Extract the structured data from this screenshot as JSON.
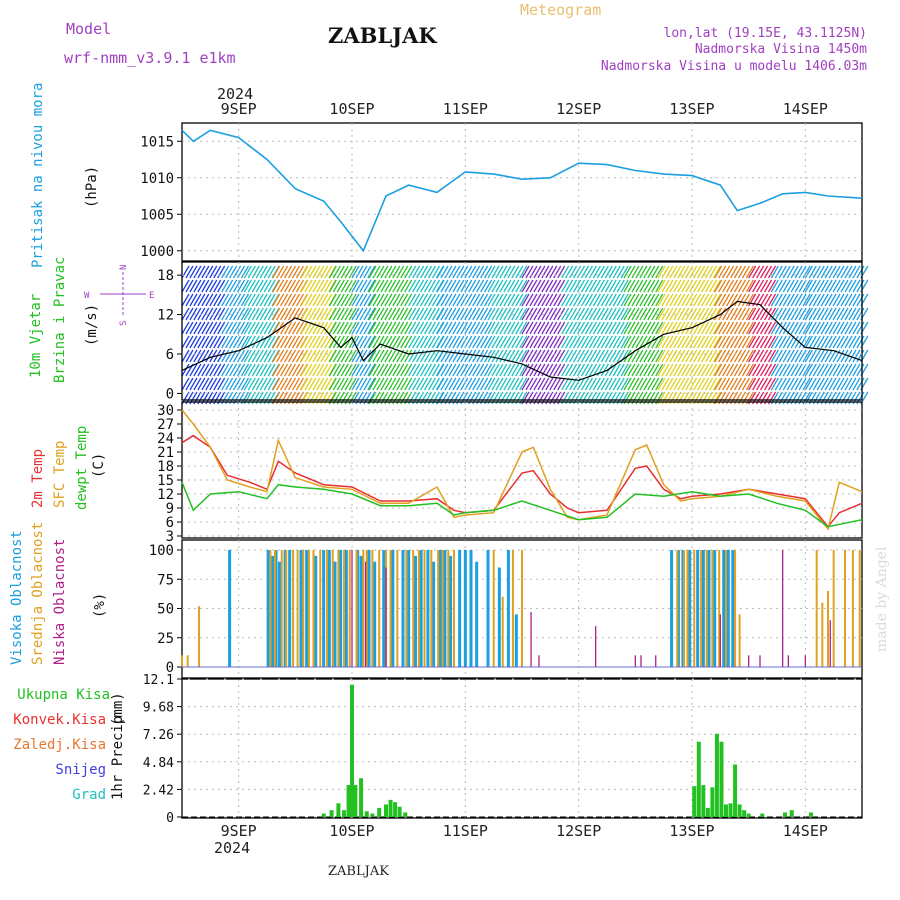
{
  "header": {
    "model_label": "Model",
    "model_name": "wrf-nmm_v3.9.1  e1km",
    "title": "ZABLJAK",
    "meteogram_label": "Meteogram",
    "coords": "lon,lat (19.15E, 43.1125N)",
    "altitude": "Nadmorska Visina 1450m",
    "model_altitude": "Nadmorska Visina u modelu 1406.03m",
    "footer_title": "ZABLJAK",
    "watermark": "made by Angel"
  },
  "colors": {
    "pressure": "#1a9fe0",
    "temp2m": "#e83030",
    "sfc": "#e0a020",
    "dewpt": "#22c020",
    "high_cloud": "#1a9fe0",
    "mid_cloud": "#e0a020",
    "low_cloud": "#b0208a",
    "model_text": "#a040c0",
    "meteogram_text": "#e8c070"
  },
  "chart_data": [
    {
      "type": "line",
      "panel": "pressure",
      "ylabel": "Pritisak na nivou mora",
      "unit": "(hPa)",
      "yticks": [
        "1015",
        "1010",
        "1005",
        "1000"
      ],
      "ylim": [
        998.6,
        1017.5
      ],
      "x_days": [
        8.5,
        8.6,
        8.75,
        9.0,
        9.25,
        9.5,
        9.75,
        9.9,
        10.0,
        10.1,
        10.3,
        10.5,
        10.75,
        11.0,
        11.25,
        11.5,
        11.75,
        12.0,
        12.25,
        12.5,
        12.75,
        13.0,
        13.25,
        13.4,
        13.6,
        13.8,
        14.0,
        14.2,
        14.5
      ],
      "values": [
        1016.5,
        1015.0,
        1016.5,
        1015.5,
        1012.5,
        1008.5,
        1006.8,
        1004.0,
        1002.0,
        1000.0,
        1007.5,
        1009.0,
        1008.0,
        1010.8,
        1010.5,
        1009.8,
        1010.0,
        1012.0,
        1011.8,
        1011.0,
        1010.5,
        1010.3,
        1009.0,
        1005.5,
        1006.5,
        1007.8,
        1008.0,
        1007.5,
        1007.2
      ]
    },
    {
      "type": "line",
      "panel": "wind",
      "ylabel1": "10m Vjetar",
      "ylabel2": "Brzina i Pravac",
      "unit": "(m/s)",
      "yticks": [
        "18",
        "12",
        "6",
        "0"
      ],
      "ylim": [
        -1,
        20
      ],
      "compass": [
        "N",
        "E",
        "W",
        "S"
      ],
      "x_days": [
        8.5,
        8.75,
        9.0,
        9.25,
        9.5,
        9.75,
        9.9,
        10.0,
        10.1,
        10.25,
        10.5,
        10.75,
        11.0,
        11.25,
        11.5,
        11.75,
        12.0,
        12.25,
        12.5,
        12.75,
        13.0,
        13.25,
        13.4,
        13.6,
        13.8,
        14.0,
        14.25,
        14.5
      ],
      "values": [
        3.5,
        5.5,
        6.5,
        8.5,
        11.5,
        10.0,
        7.0,
        8.5,
        5.0,
        7.5,
        6.0,
        6.5,
        6.0,
        5.5,
        4.5,
        2.5,
        2.0,
        3.5,
        6.5,
        9.0,
        10.0,
        12.0,
        14.0,
        13.5,
        10.0,
        7.0,
        6.5,
        5.0
      ]
    },
    {
      "type": "line",
      "panel": "temperature",
      "ylabel1": "2m Temp",
      "ylabel2": "SFC Temp",
      "ylabel3": "dewpt Temp",
      "unit": "(C)",
      "yticks": [
        "30",
        "27",
        "24",
        "21",
        "18",
        "15",
        "12",
        "9",
        "6",
        "3"
      ],
      "ylim": [
        3,
        30
      ],
      "series": [
        {
          "name": "2m Temp",
          "x_days": [
            8.5,
            8.6,
            8.75,
            8.9,
            9.1,
            9.25,
            9.35,
            9.5,
            9.75,
            10.0,
            10.25,
            10.5,
            10.75,
            10.9,
            11.0,
            11.25,
            11.5,
            11.6,
            11.75,
            11.9,
            12.0,
            12.25,
            12.5,
            12.6,
            12.75,
            12.9,
            13.0,
            13.25,
            13.5,
            13.75,
            14.0,
            14.2,
            14.3,
            14.5
          ],
          "values": [
            23.0,
            24.5,
            22.0,
            16.0,
            14.5,
            13.0,
            19.0,
            16.5,
            14.0,
            13.5,
            10.5,
            10.5,
            11.0,
            8.5,
            8.0,
            8.5,
            16.5,
            17.0,
            12.0,
            9.0,
            8.0,
            8.5,
            17.5,
            18.0,
            13.0,
            11.0,
            11.5,
            12.0,
            13.0,
            12.0,
            11.0,
            5.0,
            8.0,
            10.0
          ]
        },
        {
          "name": "SFC Temp",
          "x_days": [
            8.5,
            8.6,
            8.75,
            8.9,
            9.1,
            9.25,
            9.35,
            9.5,
            9.75,
            10.0,
            10.25,
            10.5,
            10.75,
            10.9,
            11.0,
            11.25,
            11.5,
            11.6,
            11.75,
            11.9,
            12.0,
            12.25,
            12.5,
            12.6,
            12.75,
            12.9,
            13.0,
            13.25,
            13.5,
            13.75,
            14.0,
            14.2,
            14.3,
            14.5
          ],
          "values": [
            30.0,
            27.0,
            22.0,
            15.0,
            13.5,
            12.5,
            23.5,
            15.5,
            13.5,
            13.0,
            10.0,
            10.0,
            13.5,
            7.0,
            7.5,
            8.0,
            21.0,
            22.0,
            13.0,
            7.0,
            6.5,
            7.5,
            21.5,
            22.5,
            14.0,
            10.5,
            11.0,
            11.5,
            13.0,
            11.5,
            10.5,
            4.5,
            14.5,
            12.5
          ]
        },
        {
          "name": "dewpt Temp",
          "x_days": [
            8.5,
            8.6,
            8.75,
            9.0,
            9.25,
            9.35,
            9.5,
            9.75,
            10.0,
            10.25,
            10.5,
            10.75,
            10.9,
            11.0,
            11.25,
            11.5,
            11.75,
            12.0,
            12.25,
            12.5,
            12.75,
            13.0,
            13.25,
            13.5,
            13.75,
            14.0,
            14.2,
            14.5
          ],
          "values": [
            14.5,
            8.5,
            12.0,
            12.5,
            11.0,
            14.0,
            13.5,
            13.0,
            12.0,
            9.5,
            9.5,
            10.0,
            7.5,
            8.0,
            8.5,
            10.5,
            8.5,
            6.5,
            7.0,
            12.0,
            11.5,
            12.5,
            11.5,
            12.0,
            10.0,
            8.5,
            5.0,
            6.5
          ]
        }
      ]
    },
    {
      "type": "bar",
      "panel": "clouds",
      "ylabel1": "Visoka Oblacnost",
      "ylabel2": "Srednja Oblacnost",
      "ylabel3": "Niska Oblacnost",
      "unit": "(%)",
      "yticks": [
        "100",
        "75",
        "50",
        "25",
        "0"
      ],
      "ylim": [
        0,
        100
      ],
      "series": [
        {
          "name": "Visoka Oblacnost",
          "x_days": [
            8.92,
            9.26,
            9.3,
            9.33,
            9.36,
            9.41,
            9.45,
            9.55,
            9.6,
            9.68,
            9.75,
            9.8,
            9.85,
            9.9,
            9.95,
            10.05,
            10.08,
            10.15,
            10.2,
            10.28,
            10.36,
            10.45,
            10.5,
            10.56,
            10.61,
            10.67,
            10.72,
            10.78,
            10.82,
            10.87,
            10.95,
            11.0,
            11.05,
            11.1,
            11.2,
            11.3,
            11.38,
            11.45,
            12.82,
            12.88,
            12.92,
            12.98,
            13.05,
            13.1,
            13.15,
            13.2,
            13.28,
            13.32,
            13.36
          ],
          "values": [
            100,
            100,
            95,
            100,
            90,
            100,
            100,
            100,
            100,
            95,
            100,
            100,
            90,
            100,
            100,
            100,
            95,
            100,
            90,
            100,
            100,
            100,
            100,
            95,
            100,
            100,
            90,
            100,
            100,
            95,
            100,
            100,
            100,
            90,
            100,
            85,
            100,
            45,
            100,
            100,
            100,
            100,
            100,
            100,
            100,
            100,
            100,
            100,
            100
          ]
        },
        {
          "name": "Srednja Oblacnost",
          "x_days": [
            8.5,
            8.55,
            8.65,
            9.28,
            9.32,
            9.38,
            9.42,
            9.48,
            9.52,
            9.57,
            9.62,
            9.66,
            9.72,
            9.78,
            9.83,
            9.88,
            9.93,
            9.98,
            10.04,
            10.1,
            10.13,
            10.18,
            10.24,
            10.3,
            10.34,
            10.4,
            10.48,
            10.54,
            10.59,
            10.64,
            10.7,
            10.76,
            10.8,
            10.85,
            10.9,
            11.25,
            11.33,
            11.42,
            11.5,
            12.87,
            12.93,
            12.96,
            13.02,
            13.08,
            13.13,
            13.18,
            13.24,
            13.3,
            13.38,
            13.42,
            14.1,
            14.15,
            14.2,
            14.25,
            14.35,
            14.42,
            14.48
          ],
          "values": [
            10,
            10,
            52,
            100,
            100,
            100,
            100,
            100,
            100,
            100,
            100,
            100,
            100,
            100,
            100,
            100,
            100,
            100,
            100,
            100,
            100,
            100,
            100,
            100,
            100,
            100,
            100,
            100,
            100,
            100,
            100,
            100,
            100,
            100,
            100,
            100,
            60,
            100,
            100,
            100,
            100,
            100,
            100,
            100,
            100,
            100,
            100,
            100,
            100,
            45,
            100,
            55,
            65,
            100,
            100,
            100,
            100
          ]
        },
        {
          "name": "Niska Oblacnost",
          "x_days": [
            10.0,
            10.12,
            10.3,
            11.58,
            11.65,
            12.15,
            12.5,
            12.55,
            12.68,
            13.25,
            13.5,
            13.6,
            13.8,
            13.85,
            14.0,
            14.22
          ],
          "values": [
            100,
            90,
            85,
            47,
            10,
            35,
            10,
            10,
            10,
            45,
            10,
            10,
            100,
            10,
            10,
            40
          ]
        }
      ]
    },
    {
      "type": "bar",
      "panel": "precipitation",
      "ylabel": "1hr Precip",
      "unit": "(mm)",
      "yticks": [
        "12.1",
        "9.68",
        "7.26",
        "4.84",
        "2.42",
        "0"
      ],
      "ylim": [
        0,
        12.1
      ],
      "legend": [
        "Ukupna Kisa",
        "Konvek.Kisa",
        "Zaledj.Kisa",
        "Snijeg",
        "Grad"
      ],
      "legend_colors": [
        "#22c020",
        "#e83030",
        "#e87830",
        "#4040e0",
        "#20c0c0"
      ],
      "x_days": [
        9.75,
        9.82,
        9.88,
        9.93,
        9.97,
        10.0,
        10.03,
        10.08,
        10.13,
        10.18,
        10.24,
        10.3,
        10.34,
        10.38,
        10.42,
        10.47,
        13.02,
        13.06,
        13.1,
        13.14,
        13.18,
        13.22,
        13.26,
        13.3,
        13.34,
        13.38,
        13.42,
        13.46,
        13.5,
        13.62,
        13.82,
        13.88,
        14.05
      ],
      "values": [
        0.3,
        0.6,
        1.2,
        0.6,
        2.8,
        11.6,
        2.8,
        3.4,
        0.5,
        0.3,
        0.8,
        1.1,
        1.5,
        1.3,
        0.9,
        0.4,
        2.7,
        6.6,
        2.8,
        0.8,
        2.6,
        7.3,
        6.6,
        1.1,
        1.2,
        4.6,
        1.1,
        0.6,
        0.3,
        0.3,
        0.4,
        0.6,
        0.4
      ]
    }
  ],
  "axis": {
    "year": "2024",
    "day_labels": [
      "9SEP",
      "10SEP",
      "11SEP",
      "12SEP",
      "13SEP",
      "14SEP"
    ]
  }
}
